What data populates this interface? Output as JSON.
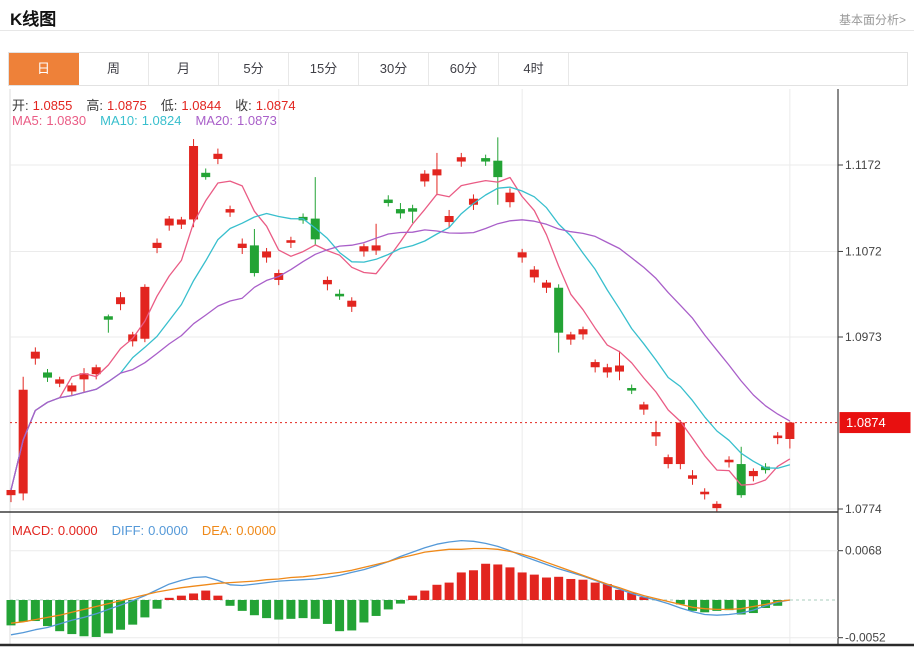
{
  "header": {
    "title": "K线图",
    "link_label": "基本面分析>"
  },
  "tabs": {
    "items": [
      "日",
      "周",
      "月",
      "5分",
      "15分",
      "30分",
      "60分",
      "4时"
    ],
    "active_index": 0
  },
  "legend": {
    "open_label": "开:",
    "open": "1.0855",
    "high_label": "高:",
    "high": "1.0875",
    "low_label": "低:",
    "low": "1.0844",
    "close_label": "收:",
    "close": "1.0874",
    "ma5_label": "MA5:",
    "ma5": "1.0830",
    "ma10_label": "MA10:",
    "ma10": "1.0824",
    "ma20_label": "MA20:",
    "ma20": "1.0873"
  },
  "macd_legend": {
    "macd_label": "MACD:",
    "macd": "0.0000",
    "diff_label": "DIFF:",
    "diff": "0.0000",
    "dea_label": "DEA:",
    "dea": "0.0000"
  },
  "colors": {
    "red": "#e2251f",
    "green": "#23a335",
    "ma5": "#ea5c85",
    "ma10": "#38bfcd",
    "ma20": "#a95fc9",
    "diff": "#5599d8",
    "dea": "#ef8919",
    "grid": "#ebebeb",
    "axisLine": "#3c3c3c",
    "tickText": "#444444",
    "lastPriceChip": "#e81010",
    "zeroDash": "#a9cdbc",
    "tabActive": "#ee8139",
    "plotBorder": "#dcdcdc",
    "pageEdge": "#2a2a2a"
  },
  "chart_data": {
    "type": "candlestick+macd",
    "title": "K线图 (daily K-line with MA5/MA10/MA20 and MACD panel)",
    "legend_position": "top-left overlay",
    "grid": true,
    "price_axis": {
      "side": "right",
      "ticks": [
        1.1172,
        1.1072,
        1.0973,
        1.0874,
        1.0774
      ],
      "tick_labels": [
        "1.1172",
        "1.1072",
        "1.0973",
        "1.0874",
        "1.0774"
      ]
    },
    "last_price": 1.0874,
    "last_price_label": "1.0874",
    "ma_periods": [
      5,
      10,
      20
    ],
    "candles": [
      [
        1.079,
        1.0798,
        1.0782,
        1.0796
      ],
      [
        1.0792,
        1.0927,
        1.0784,
        1.0912
      ],
      [
        1.0948,
        1.0961,
        1.0941,
        1.0956
      ],
      [
        1.0932,
        1.0936,
        1.0921,
        1.0926
      ],
      [
        1.0919,
        1.0927,
        1.0915,
        1.0924
      ],
      [
        1.091,
        1.092,
        1.0906,
        1.0917
      ],
      [
        1.0924,
        1.0937,
        1.0909,
        1.0931
      ],
      [
        1.093,
        1.0941,
        1.0924,
        1.0938
      ],
      [
        1.0997,
        1.0999,
        1.0978,
        1.0993
      ],
      [
        1.1011,
        1.1025,
        1.1004,
        1.1019
      ],
      [
        1.0968,
        1.0979,
        1.0962,
        1.0976
      ],
      [
        1.0971,
        1.1034,
        1.0967,
        1.1031
      ],
      [
        1.1076,
        1.1087,
        1.107,
        1.1082
      ],
      [
        1.1102,
        1.1113,
        1.1096,
        1.111
      ],
      [
        1.1103,
        1.1112,
        1.1098,
        1.1109
      ],
      [
        1.1109,
        1.1202,
        1.11,
        1.1194
      ],
      [
        1.1163,
        1.1168,
        1.1155,
        1.1158
      ],
      [
        1.1179,
        1.1191,
        1.1173,
        1.1185
      ],
      [
        1.1117,
        1.1125,
        1.1112,
        1.1121
      ],
      [
        1.1076,
        1.1087,
        1.1069,
        1.1081
      ],
      [
        1.1079,
        1.1098,
        1.1043,
        1.1047
      ],
      [
        1.1065,
        1.1076,
        1.1059,
        1.1072
      ],
      [
        1.1039,
        1.1051,
        1.1033,
        1.1047
      ],
      [
        1.1082,
        1.1089,
        1.1076,
        1.1085
      ],
      [
        1.1112,
        1.1116,
        1.1104,
        1.1108
      ],
      [
        1.111,
        1.1158,
        1.1079,
        1.1086
      ],
      [
        1.1034,
        1.1043,
        1.1027,
        1.1039
      ],
      [
        1.1023,
        1.1028,
        1.1016,
        1.102
      ],
      [
        1.1008,
        1.1019,
        1.1002,
        1.1015
      ],
      [
        1.1072,
        1.1081,
        1.1066,
        1.1078
      ],
      [
        1.1073,
        1.1104,
        1.1068,
        1.1079
      ],
      [
        1.1132,
        1.1137,
        1.1124,
        1.1128
      ],
      [
        1.1121,
        1.1128,
        1.111,
        1.1116
      ],
      [
        1.1122,
        1.1126,
        1.1105,
        1.1118
      ],
      [
        1.1153,
        1.1166,
        1.1147,
        1.1162
      ],
      [
        1.116,
        1.1186,
        1.1137,
        1.1167
      ],
      [
        1.1106,
        1.112,
        1.11,
        1.1113
      ],
      [
        1.1176,
        1.1186,
        1.117,
        1.1181
      ],
      [
        1.1126,
        1.1138,
        1.112,
        1.1133
      ],
      [
        1.118,
        1.1184,
        1.1171,
        1.1176
      ],
      [
        1.1177,
        1.1204,
        1.1126,
        1.1158
      ],
      [
        1.1129,
        1.1145,
        1.1123,
        1.114
      ],
      [
        1.1065,
        1.1075,
        1.1059,
        1.1071
      ],
      [
        1.1042,
        1.1055,
        1.1036,
        1.1051
      ],
      [
        1.103,
        1.1039,
        1.1024,
        1.1036
      ],
      [
        1.103,
        1.1034,
        1.0955,
        1.0978
      ],
      [
        1.097,
        1.0979,
        1.0964,
        1.0976
      ],
      [
        1.0976,
        1.0985,
        1.097,
        1.0982
      ],
      [
        1.0938,
        1.0947,
        1.0932,
        1.0944
      ],
      [
        1.0932,
        1.0942,
        1.0926,
        1.0938
      ],
      [
        1.0933,
        1.0957,
        1.0923,
        1.094
      ],
      [
        1.0914,
        1.0918,
        1.0907,
        1.0911
      ],
      [
        1.0889,
        1.0898,
        1.0883,
        1.0895
      ],
      [
        1.0858,
        1.0876,
        1.0847,
        1.0863
      ],
      [
        1.0826,
        1.0837,
        1.0821,
        1.0834
      ],
      [
        1.0826,
        1.0877,
        1.082,
        1.0874
      ],
      [
        1.0809,
        1.0819,
        1.0802,
        1.0813
      ],
      [
        1.0791,
        1.0798,
        1.0785,
        1.0794
      ],
      [
        1.0775,
        1.0783,
        1.077,
        1.078
      ],
      [
        1.0828,
        1.0835,
        1.0822,
        1.0831
      ],
      [
        1.0826,
        1.0846,
        1.0787,
        1.079
      ],
      [
        1.0812,
        1.0821,
        1.0806,
        1.0818
      ],
      [
        1.0823,
        1.0827,
        1.0815,
        1.0819
      ],
      [
        1.0856,
        1.0863,
        1.0849,
        1.0859
      ],
      [
        1.0855,
        1.0875,
        1.0844,
        1.0874
      ]
    ],
    "macd_panel": {
      "axis_ticks": [
        0.0068,
        -0.0052
      ],
      "axis_tick_labels": [
        "0.0068",
        "-0.0052"
      ],
      "histogram": [
        -0.0035,
        -0.003,
        -0.0029,
        -0.0036,
        -0.0043,
        -0.0047,
        -0.005,
        -0.0051,
        -0.0046,
        -0.0041,
        -0.0034,
        -0.0024,
        -0.0012,
        0.0003,
        0.0006,
        0.0009,
        0.0013,
        0.0006,
        -0.0008,
        -0.0015,
        -0.0021,
        -0.0025,
        -0.0027,
        -0.0026,
        -0.0025,
        -0.0026,
        -0.0033,
        -0.0043,
        -0.0042,
        -0.0031,
        -0.0022,
        -0.0013,
        -0.0005,
        0.0006,
        0.0013,
        0.0021,
        0.0024,
        0.0038,
        0.0041,
        0.005,
        0.0049,
        0.0045,
        0.0038,
        0.0035,
        0.0031,
        0.0032,
        0.0029,
        0.0028,
        0.0024,
        0.0022,
        0.0014,
        0.001,
        0.0004,
        0.0,
        0.0,
        -0.0006,
        -0.0015,
        -0.0017,
        -0.0015,
        -0.0014,
        -0.002,
        -0.0018,
        -0.0011,
        -0.0008,
        0.0
      ],
      "diff": [
        -0.0048,
        -0.0045,
        -0.0041,
        -0.0038,
        -0.0033,
        -0.0028,
        -0.0024,
        -0.0019,
        -0.0013,
        -0.0007,
        -0.0001,
        0.0006,
        0.0014,
        0.0022,
        0.0027,
        0.0031,
        0.0032,
        0.0027,
        0.0021,
        0.002,
        0.0022,
        0.0024,
        0.0026,
        0.0027,
        0.0028,
        0.0029,
        0.0031,
        0.0034,
        0.0038,
        0.0042,
        0.0047,
        0.0053,
        0.006,
        0.0066,
        0.0072,
        0.0077,
        0.008,
        0.0082,
        0.0081,
        0.0078,
        0.0074,
        0.0068,
        0.0061,
        0.0055,
        0.0049,
        0.0043,
        0.0038,
        0.0033,
        0.0027,
        0.0021,
        0.0015,
        0.0009,
        0.0004,
        0.0,
        -0.0005,
        -0.0011,
        -0.0016,
        -0.002,
        -0.0021,
        -0.002,
        -0.0018,
        -0.0014,
        -0.0008,
        -0.0003,
        0.0
      ],
      "dea": [
        -0.0032,
        -0.003,
        -0.0027,
        -0.0024,
        -0.0021,
        -0.0017,
        -0.0013,
        -0.0009,
        -0.0005,
        -0.0001,
        0.0003,
        0.0007,
        0.0011,
        0.0014,
        0.0017,
        0.0019,
        0.0021,
        0.0023,
        0.0024,
        0.0025,
        0.0026,
        0.0028,
        0.0029,
        0.0031,
        0.0032,
        0.0034,
        0.0036,
        0.0038,
        0.0041,
        0.0045,
        0.0049,
        0.0053,
        0.0058,
        0.0062,
        0.0066,
        0.0068,
        0.007,
        0.007,
        0.0071,
        0.0071,
        0.007,
        0.0067,
        0.0063,
        0.0058,
        0.0052,
        0.0046,
        0.004,
        0.0034,
        0.0028,
        0.0022,
        0.0017,
        0.0011,
        0.0006,
        0.0002,
        -0.0002,
        -0.0006,
        -0.001,
        -0.0012,
        -0.0013,
        -0.0013,
        -0.0012,
        -0.0009,
        -0.0006,
        -0.0002,
        0.0
      ]
    },
    "layout": {
      "vertical_gridline_indices": [
        22,
        42,
        64
      ]
    }
  }
}
